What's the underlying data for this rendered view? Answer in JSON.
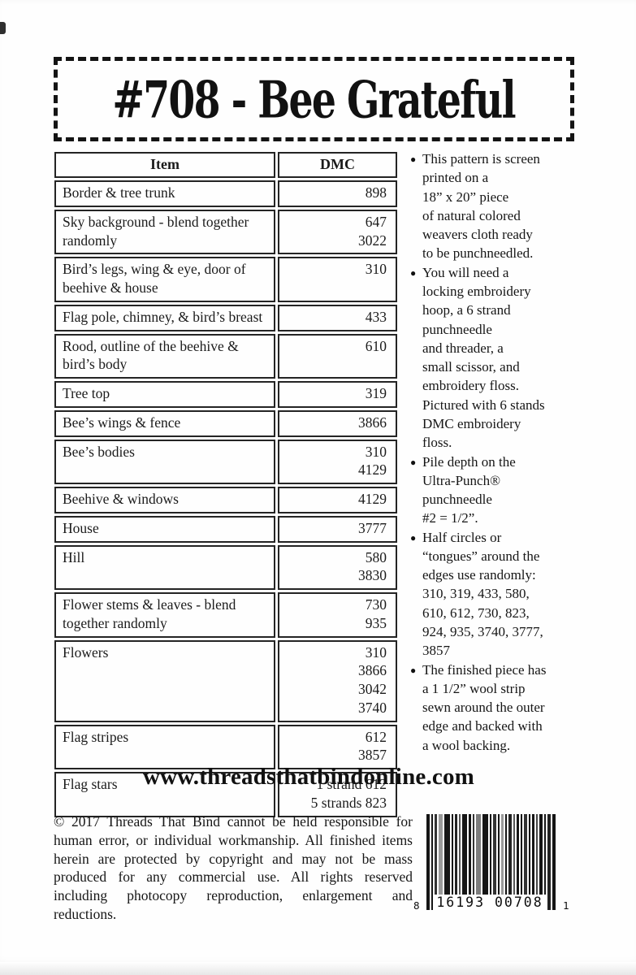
{
  "header": {
    "title": "#708 - Bee Grateful"
  },
  "table": {
    "headers": {
      "item": "Item",
      "dmc": "DMC"
    },
    "rows": [
      {
        "item": "Border & tree trunk",
        "dmc": [
          "898"
        ]
      },
      {
        "item": "Sky background - blend together randomly",
        "dmc": [
          "647",
          "3022"
        ]
      },
      {
        "item": "Bird’s legs, wing & eye, door of beehive & house",
        "dmc": [
          "310"
        ]
      },
      {
        "item": "Flag pole, chimney, & bird’s breast",
        "dmc": [
          "433"
        ]
      },
      {
        "item": "Rood, outline of the beehive & bird’s body",
        "dmc": [
          "610"
        ]
      },
      {
        "item": "Tree top",
        "dmc": [
          "319"
        ]
      },
      {
        "item": "Bee’s wings & fence",
        "dmc": [
          "3866"
        ]
      },
      {
        "item": "Bee’s bodies",
        "dmc": [
          "310",
          "4129"
        ]
      },
      {
        "item": "Beehive & windows",
        "dmc": [
          "4129"
        ]
      },
      {
        "item": "House",
        "dmc": [
          "3777"
        ]
      },
      {
        "item": "Hill",
        "dmc": [
          "580",
          "3830"
        ]
      },
      {
        "item": "Flower stems & leaves - blend together randomly",
        "dmc": [
          "730",
          "935"
        ]
      },
      {
        "item": "Flowers",
        "dmc": [
          "310",
          "3866",
          "3042",
          "3740"
        ]
      },
      {
        "item": "Flag stripes",
        "dmc": [
          "612",
          "3857"
        ]
      },
      {
        "item": "Flag stars",
        "dmc": [
          "1 strand 612",
          "5 strands 823"
        ]
      }
    ]
  },
  "notes": {
    "bullet_glyph": "●",
    "bullets": [
      "This pattern is screen\nprinted on a\n18” x 20” piece\nof natural colored\nweavers cloth ready\nto be punchneedled.",
      "You will need a\nlocking embroidery\nhoop, a 6 strand\npunchneedle\nand threader, a\nsmall scissor, and\nembroidery floss.\nPictured with 6 stands\nDMC embroidery\nfloss.",
      "Pile depth on the\nUltra-Punch®\npunchneedle\n#2 = 1/2”.",
      "Half circles or\n“tongues” around the\nedges use randomly:\n310, 319, 433, 580,\n610, 612, 730, 823,\n924, 935, 3740, 3777,\n3857",
      "The finished piece has\na 1 1/2” wool strip\nsewn around the outer\nedge and backed with\na wool backing."
    ]
  },
  "website": "www.threadsthatbindonline.com",
  "footer": {
    "copyright": "© 2017 Threads That Bind cannot be held responsible for human error, or individual workmanship.  All finished items herein are protected by copyright and may not be mass produced for any commercial use. All rights reserved including photocopy reproduction, enlargement and reductions.",
    "barcode": {
      "left_digit": "8",
      "center_digits": "16193 00708",
      "right_digit": "1"
    }
  }
}
